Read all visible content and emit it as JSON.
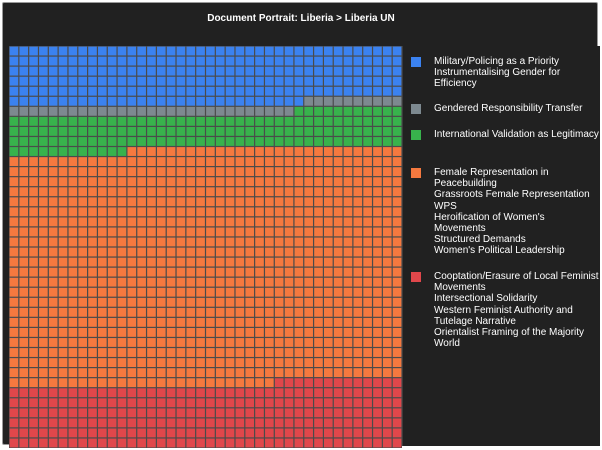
{
  "title": "Document Portrait: Liberia > Liberia UN",
  "colors": {
    "background": "#212121",
    "grid_line": "#4b4b4b",
    "blue": "#3b82f0",
    "gray": "#7d8990",
    "green": "#38b24c",
    "orange": "#f5793f",
    "red": "#e0474b"
  },
  "chart_data": {
    "type": "waffle",
    "title": "Document Portrait: Liberia > Liberia UN",
    "grid": {
      "columns": 40,
      "rows": 40,
      "total_cells": 1600,
      "fill_order": "row-major from top-left"
    },
    "series": [
      {
        "name": "Military/Policing as a Priority | Instrumentalising Gender for Efficiency",
        "color": "#3b82f0",
        "cells": 230
      },
      {
        "name": "Gendered Responsibility Transfer",
        "color": "#7d8990",
        "cells": 39
      },
      {
        "name": "International Validation as Legitimacy",
        "color": "#38b24c",
        "cells": 143
      },
      {
        "name": "Female Representation in Peacebuilding | Grassroots Female Representation | WPS | Heroification of Women's Movements | Structured Demands | Women's Political Leadership",
        "color": "#f5793f",
        "cells": 935
      },
      {
        "name": "Cooptation/Erasure of Local Feminist Movements | Intersectional Solidarity | Western Feminist Authority and Tutelage Narrative | Orientalist Framing of the Majority World",
        "color": "#e0474b",
        "cells": 253
      }
    ]
  },
  "legend": [
    {
      "color": "#3b82f0",
      "lines": [
        "Military/Policing as a Priority",
        "Instrumentalising Gender for Efficiency"
      ]
    },
    {
      "color": "#7d8990",
      "lines": [
        "Gendered Responsibility Transfer"
      ]
    },
    {
      "color": "#38b24c",
      "lines": [
        "International Validation as Legitimacy"
      ]
    },
    {
      "color": "#f5793f",
      "lines": [
        "Female Representation in Peacebuilding",
        "Grassroots Female Representation",
        "WPS",
        "Heroification of Women's Movements",
        "Structured Demands",
        "Women's Political Leadership"
      ]
    },
    {
      "color": "#e0474b",
      "lines": [
        "Cooptation/Erasure of Local Feminist Movements",
        "Intersectional Solidarity",
        "Western Feminist Authority and Tutelage Narrative",
        "Orientalist Framing of the Majority World"
      ]
    }
  ]
}
